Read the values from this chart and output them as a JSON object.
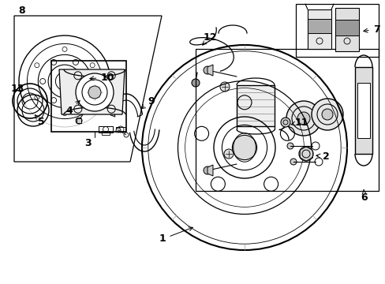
{
  "bg_color": "#ffffff",
  "line_color": "#000000",
  "fig_width": 4.89,
  "fig_height": 3.6,
  "font_size": 9
}
